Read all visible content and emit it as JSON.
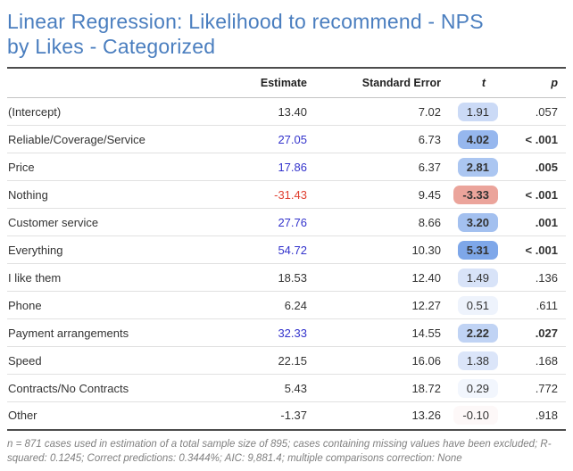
{
  "title": {
    "line1": "Linear Regression: Likelihood to recommend - NPS",
    "line2": "by Likes - Categorized"
  },
  "colors": {
    "title_blue": "#4a7ebf",
    "positive_estimate_blue": "#3333cc",
    "negative_estimate_red": "#e04031",
    "neutral_text": "#333333",
    "footnote_gray": "#808080",
    "rule_dark": "#4c4c4c",
    "row_divider": "#e1e1e1",
    "max_positive_pill": "#7ea7e9",
    "negative_pill": "#eba49b"
  },
  "chart_data": {
    "type": "table",
    "title": "Linear Regression: Likelihood to recommend - NPS by Likes - Categorized",
    "columns": [
      "",
      "Estimate",
      "Standard Error",
      "t",
      "p"
    ],
    "rows": [
      {
        "label": "(Intercept)",
        "estimate": "13.40",
        "estimate_color": "#333333",
        "se": "7.02",
        "t": "1.91",
        "t_bg": "#cbdaf6",
        "p": ".057",
        "significant": false
      },
      {
        "label": "Reliable/Coverage/Service",
        "estimate": "27.05",
        "estimate_color": "#3333cc",
        "se": "6.73",
        "t": "4.02",
        "t_bg": "#96b7ee",
        "p": "< .001",
        "significant": true
      },
      {
        "label": "Price",
        "estimate": "17.86",
        "estimate_color": "#3333cc",
        "se": "6.37",
        "t": "2.81",
        "t_bg": "#abc6f1",
        "p": ".005",
        "significant": true
      },
      {
        "label": "Nothing",
        "estimate": "-31.43",
        "estimate_color": "#e04031",
        "se": "9.45",
        "t": "-3.33",
        "t_bg": "#eba49b",
        "p": "< .001",
        "significant": true
      },
      {
        "label": "Customer service",
        "estimate": "27.76",
        "estimate_color": "#3333cc",
        "se": "8.66",
        "t": "3.20",
        "t_bg": "#a3c0ef",
        "p": ".001",
        "significant": true
      },
      {
        "label": "Everything",
        "estimate": "54.72",
        "estimate_color": "#3333cc",
        "se": "10.30",
        "t": "5.31",
        "t_bg": "#7ea7e9",
        "p": "< .001",
        "significant": true
      },
      {
        "label": "I like them",
        "estimate": "18.53",
        "estimate_color": "#333333",
        "se": "12.40",
        "t": "1.49",
        "t_bg": "#d8e3f8",
        "p": ".136",
        "significant": false
      },
      {
        "label": "Phone",
        "estimate": "6.24",
        "estimate_color": "#333333",
        "se": "12.27",
        "t": "0.51",
        "t_bg": "#eef3fc",
        "p": ".611",
        "significant": false
      },
      {
        "label": "Payment arrangements",
        "estimate": "32.33",
        "estimate_color": "#3333cc",
        "se": "14.55",
        "t": "2.22",
        "t_bg": "#c0d3f4",
        "p": ".027",
        "significant": true
      },
      {
        "label": "Speed",
        "estimate": "22.15",
        "estimate_color": "#333333",
        "se": "16.06",
        "t": "1.38",
        "t_bg": "#dbe5f9",
        "p": ".168",
        "significant": false
      },
      {
        "label": "Contracts/No Contracts",
        "estimate": "5.43",
        "estimate_color": "#333333",
        "se": "18.72",
        "t": "0.29",
        "t_bg": "#f2f6fd",
        "p": ".772",
        "significant": false
      },
      {
        "label": "Other",
        "estimate": "-1.37",
        "estimate_color": "#333333",
        "se": "13.26",
        "t": "-0.10",
        "t_bg": "#fdf8f8",
        "p": ".918",
        "significant": false
      }
    ],
    "footnote": "n = 871 cases used in estimation of a total sample size of 895; cases containing missing values have been excluded; R-squared: 0.1245; Correct predictions: 0.3444%; AIC: 9,881.4; multiple comparisons correction: None"
  }
}
